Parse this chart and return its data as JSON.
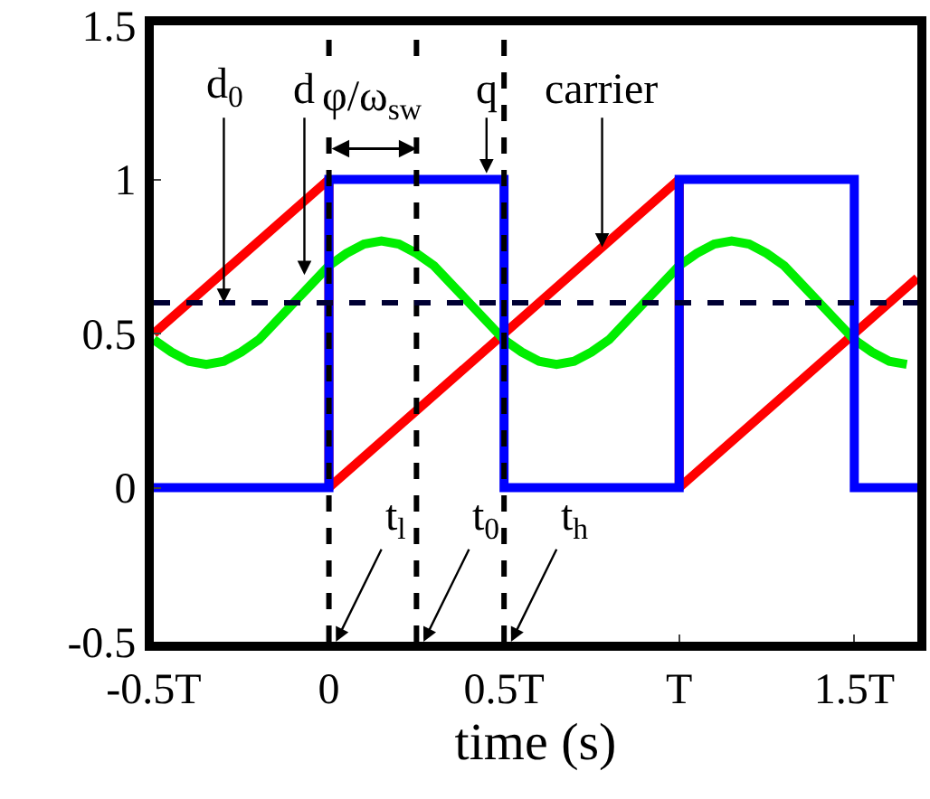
{
  "chart_data": {
    "type": "line",
    "xlabel": "time (s)",
    "xlim": [
      -0.5,
      1.68
    ],
    "xticks": [
      {
        "value": -0.5,
        "label": "-0.5T"
      },
      0,
      {
        "value": 0.5,
        "label": "0.5T"
      },
      {
        "value": 1,
        "label": "T"
      },
      {
        "value": 1.5,
        "label": "1.5T"
      }
    ],
    "ylim": [
      -0.5,
      1.5
    ],
    "yticks": [
      -0.5,
      0,
      0.5,
      1,
      1.5
    ],
    "marker": "none",
    "line_style": "solid",
    "series": [
      {
        "color": "#ff0000",
        "x": [
          -0.5,
          0,
          0,
          1,
          1,
          1.68
        ],
        "values": [
          0.5,
          1,
          0,
          1,
          0,
          0.68
        ]
      },
      {
        "color": "#00ee00",
        "x": [
          -0.5,
          -0.45,
          -0.4,
          -0.35,
          -0.3,
          -0.25,
          -0.2,
          -0.15,
          -0.1,
          -0.05,
          0,
          0.05,
          0.1,
          0.15,
          0.2,
          0.25,
          0.3,
          0.35,
          0.4,
          0.45,
          0.5,
          0.55,
          0.6,
          0.65,
          0.7,
          0.75,
          0.8,
          0.85,
          0.9,
          0.95,
          1,
          1.05,
          1.1,
          1.15,
          1.2,
          1.25,
          1.3,
          1.35,
          1.4,
          1.45,
          1.5,
          1.55,
          1.6,
          1.65
        ],
        "values": [
          0.48,
          0.44,
          0.41,
          0.4,
          0.41,
          0.44,
          0.48,
          0.54,
          0.6,
          0.66,
          0.72,
          0.76,
          0.79,
          0.8,
          0.79,
          0.76,
          0.72,
          0.66,
          0.6,
          0.54,
          0.48,
          0.44,
          0.41,
          0.4,
          0.41,
          0.44,
          0.48,
          0.54,
          0.6,
          0.66,
          0.72,
          0.76,
          0.79,
          0.8,
          0.79,
          0.76,
          0.72,
          0.66,
          0.6,
          0.54,
          0.48,
          0.44,
          0.41,
          0.4
        ]
      },
      {
        "color": "#0000ff",
        "x": [
          -0.5,
          0,
          0,
          0.5,
          0.5,
          1,
          1,
          1.5,
          1.5,
          1.68
        ],
        "values": [
          0,
          0,
          1,
          1,
          0,
          0,
          1,
          1,
          0,
          0
        ]
      }
    ],
    "ref_lines": [
      {
        "axis": "x",
        "value": 0,
        "color": "#000000",
        "line_style": "dashed"
      },
      {
        "axis": "x",
        "value": 0.25,
        "color": "#000000",
        "line_style": "dashed"
      },
      {
        "axis": "x",
        "value": 0.5,
        "color": "#000000",
        "line_style": "dashed"
      },
      {
        "axis": "y",
        "value": 0.6,
        "color": "#000033",
        "line_style": "dashed"
      }
    ],
    "annotations": [
      {
        "text": "d$_{0}$",
        "x": -0.3,
        "y": 0.6
      },
      {
        "text": "d",
        "x": -0.07,
        "y": 0.69
      },
      "φ/ω$_{sw}$",
      {
        "text": "q",
        "x": 0.45,
        "y": 1.02
      },
      {
        "text": "carrier",
        "x": 0.78,
        "y": 0.78
      },
      {
        "text": "t$_{l}$",
        "x": 0.02,
        "y": -0.5
      },
      {
        "text": "t$_{0}$",
        "x": 0.27,
        "y": -0.5
      },
      {
        "text": "t$_{h}$",
        "x": 0.52,
        "y": -0.5
      }
    ]
  }
}
